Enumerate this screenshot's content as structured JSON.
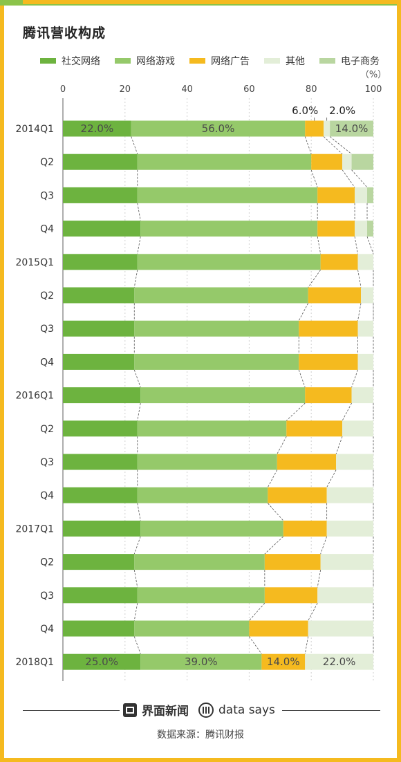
{
  "title": "腾讯营收构成",
  "legend": [
    {
      "label": "社交网络",
      "color": "#6db33f"
    },
    {
      "label": "网络游戏",
      "color": "#95c96a"
    },
    {
      "label": "网络广告",
      "color": "#f5ba1f"
    },
    {
      "label": "其他",
      "color": "#e3eed8"
    },
    {
      "label": "电子商务",
      "color": "#b9d6a0"
    }
  ],
  "footer": {
    "brand": "界面新闻",
    "datasays": "data says",
    "source": "数据来源：腾讯财报"
  },
  "chart_data": {
    "type": "bar",
    "stacked": true,
    "orientation": "horizontal",
    "unit": "（%）",
    "xlim": [
      0,
      100
    ],
    "x_ticks": [
      0,
      20,
      40,
      60,
      80,
      100
    ],
    "categories": [
      "2014Q1",
      "Q2",
      "Q3",
      "Q4",
      "2015Q1",
      "Q2",
      "Q3",
      "Q4",
      "2016Q1",
      "Q2",
      "Q3",
      "Q4",
      "2017Q1",
      "Q2",
      "Q3",
      "Q4",
      "2018Q1"
    ],
    "series": [
      {
        "name": "社交网络",
        "color": "#6db33f",
        "values": [
          22,
          24,
          24,
          25,
          24,
          23,
          23,
          23,
          25,
          24,
          24,
          24,
          25,
          23,
          24,
          23,
          25
        ]
      },
      {
        "name": "网络游戏",
        "color": "#95c96a",
        "values": [
          56,
          56,
          58,
          57,
          59,
          56,
          53,
          53,
          53,
          48,
          45,
          42,
          46,
          42,
          41,
          37,
          39
        ]
      },
      {
        "name": "网络广告",
        "color": "#f5ba1f",
        "values": [
          6,
          10,
          12,
          12,
          12,
          17,
          19,
          19,
          15,
          18,
          19,
          19,
          14,
          18,
          17,
          19,
          14
        ]
      },
      {
        "name": "其他",
        "color": "#e3eed8",
        "values": [
          2,
          3,
          4,
          4,
          5,
          4,
          5,
          5,
          7,
          10,
          12,
          15,
          15,
          17,
          18,
          21,
          22
        ]
      },
      {
        "name": "电子商务",
        "color": "#b9d6a0",
        "values": [
          14,
          7,
          2,
          2,
          0,
          0,
          0,
          0,
          0,
          0,
          0,
          0,
          0,
          0,
          0,
          0,
          0
        ]
      }
    ],
    "data_labels": [
      {
        "category_index": 0,
        "series_index": 0,
        "text": "22.0%"
      },
      {
        "category_index": 0,
        "series_index": 1,
        "text": "56.0%"
      },
      {
        "category_index": 0,
        "series_index": 2,
        "text": "6.0%"
      },
      {
        "category_index": 0,
        "series_index": 3,
        "text": "2.0%"
      },
      {
        "category_index": 0,
        "series_index": 4,
        "text": "14.0%"
      },
      {
        "category_index": 16,
        "series_index": 0,
        "text": "25.0%"
      },
      {
        "category_index": 16,
        "series_index": 1,
        "text": "39.0%"
      },
      {
        "category_index": 16,
        "series_index": 2,
        "text": "14.0%"
      },
      {
        "category_index": 16,
        "series_index": 3,
        "text": "22.0%"
      }
    ],
    "legend_position": "top"
  }
}
